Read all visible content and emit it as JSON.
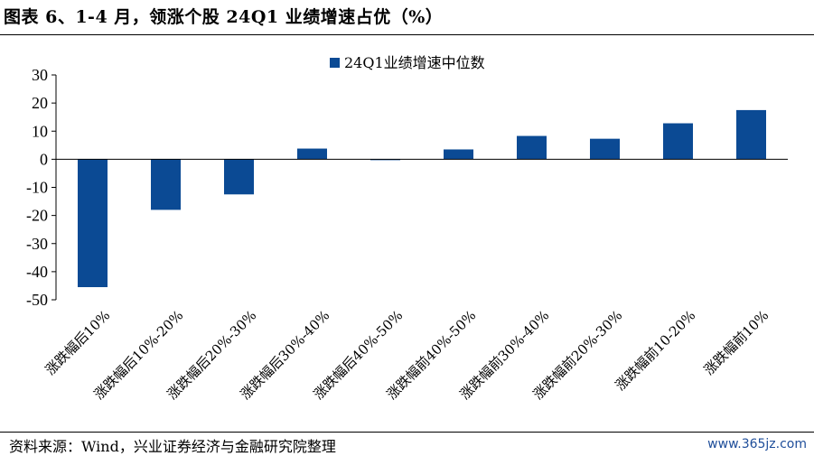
{
  "title": "图表 6、1-4 月，领涨个股 24Q1 业绩增速占优（%）",
  "source": "资料来源：Wind，兴业证券经济与金融研究院整理",
  "watermark": "www.365jz.com",
  "colors": {
    "bar": "#0b4a94",
    "axis": "#000000"
  },
  "chart_data": {
    "type": "bar",
    "title": "",
    "xlabel": "",
    "ylabel": "",
    "ylim": [
      -50,
      30
    ],
    "yticks": [
      30,
      20,
      10,
      0,
      -10,
      -20,
      -30,
      -40,
      -50
    ],
    "grid": false,
    "legend_position": "top",
    "categories": [
      "涨跌幅后10%",
      "涨跌幅后10%-20%",
      "涨跌幅后20%-30%",
      "涨跌幅后30%-40%",
      "涨跌幅后40%-50%",
      "涨跌幅前40%-50%",
      "涨跌幅前30%-40%",
      "涨跌幅前20%-30%",
      "涨跌幅前10-20%",
      "涨跌幅前10%"
    ],
    "series": [
      {
        "name": "24Q1业绩增速中位数",
        "values": [
          -45.5,
          -18,
          -12.5,
          3.8,
          -0.3,
          3.5,
          8.3,
          7.3,
          12.8,
          17.5
        ]
      }
    ]
  }
}
